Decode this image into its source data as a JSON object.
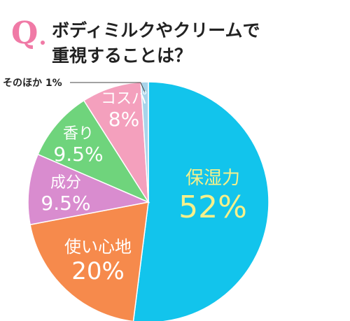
{
  "question": {
    "mark": "Q",
    "line1": "ボディミルクやクリームで",
    "line2": "重視することは？"
  },
  "chart_data": {
    "type": "pie",
    "title": "ボディミルクやクリームで重視することは？",
    "slices": [
      {
        "label": "保湿力",
        "value": 52,
        "display": "52%",
        "color": "#12c4ec",
        "text_color": "#f6f08a"
      },
      {
        "label": "使い心地",
        "value": 20,
        "display": "20%",
        "color": "#f68a4c",
        "text_color": "#ffffff"
      },
      {
        "label": "成分",
        "value": 9.5,
        "display": "9.5%",
        "color": "#d98ccf",
        "text_color": "#ffffff"
      },
      {
        "label": "香り",
        "value": 9.5,
        "display": "9.5%",
        "color": "#6fd47c",
        "text_color": "#ffffff"
      },
      {
        "label": "コスパ",
        "value": 8,
        "display": "8%",
        "color": "#f4a0bd",
        "text_color": "#ffffff"
      },
      {
        "label": "そのほか",
        "value": 1,
        "display": "1%",
        "color": "#a8d4ea",
        "text_color": "#222222"
      }
    ],
    "start_angle": "12 o'clock",
    "direction": "clockwise",
    "outside_label": "そのほか"
  }
}
